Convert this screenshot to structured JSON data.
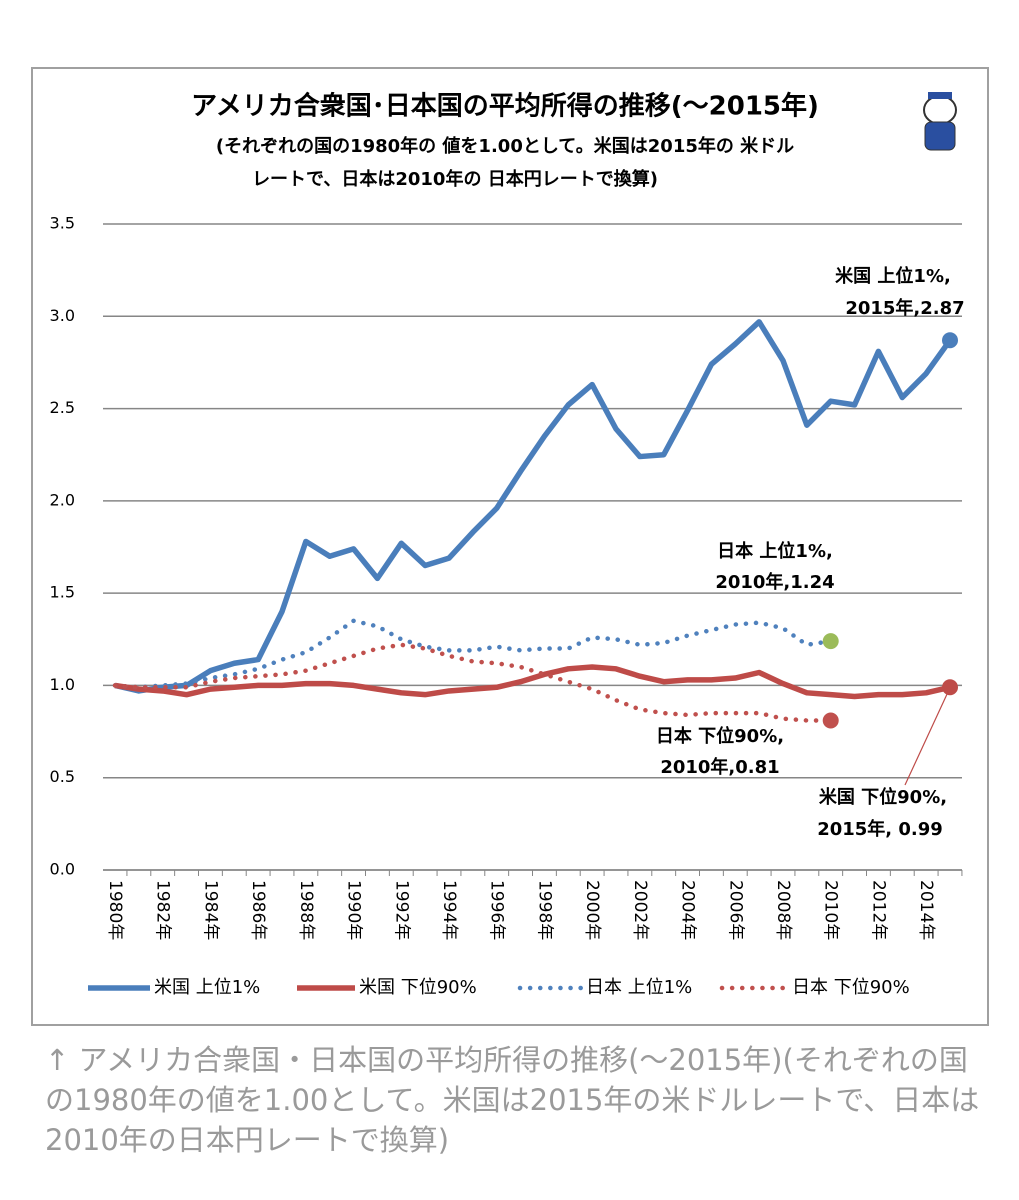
{
  "chart_data": {
    "type": "line",
    "title": "アメリカ合衆国･日本国の平均所得の推移(～2015年)",
    "subtitle": [
      "(それぞれの国の1980年の 値を1.00として。米国は2015年の 米ドル",
      "レートで、日本は2010年の 日本円レートで換算)"
    ],
    "categories": [
      "1980年",
      null,
      "1982年",
      null,
      "1984年",
      null,
      "1986年",
      null,
      "1988年",
      null,
      "1990年",
      null,
      "1992年",
      null,
      "1994年",
      null,
      "1996年",
      null,
      "1998年",
      null,
      "2000年",
      null,
      "2002年",
      null,
      "2004年",
      null,
      "2006年",
      null,
      "2008年",
      null,
      "2010年",
      null,
      "2012年",
      null,
      "2014年",
      null
    ],
    "series": [
      {
        "name": "米国 上位1%",
        "color": "#4a7ebb",
        "style": "solid",
        "marker_color": "#4a7ebb",
        "values": [
          1.0,
          0.97,
          0.99,
          1.0,
          1.08,
          1.12,
          1.14,
          1.4,
          1.78,
          1.7,
          1.74,
          1.58,
          1.77,
          1.65,
          1.69,
          1.83,
          1.96,
          2.16,
          2.35,
          2.52,
          2.63,
          2.39,
          2.24,
          2.25,
          2.49,
          2.74,
          2.85,
          2.97,
          2.76,
          2.41,
          2.54,
          2.52,
          2.81,
          2.56,
          2.69,
          2.87
        ]
      },
      {
        "name": "米国 下位90%",
        "color": "#be4b48",
        "style": "solid",
        "marker_color": "#be4b48",
        "values": [
          1.0,
          0.98,
          0.97,
          0.95,
          0.98,
          0.99,
          1.0,
          1.0,
          1.01,
          1.01,
          1.0,
          0.98,
          0.96,
          0.95,
          0.97,
          0.98,
          0.99,
          1.02,
          1.06,
          1.09,
          1.1,
          1.09,
          1.05,
          1.02,
          1.03,
          1.03,
          1.04,
          1.07,
          1.01,
          0.96,
          0.95,
          0.94,
          0.95,
          0.95,
          0.96,
          0.99
        ]
      },
      {
        "name": "日本 上位1%",
        "color": "#4f81bd",
        "style": "dotted",
        "marker_color": "#9bbb59",
        "values": [
          1.0,
          0.99,
          1.0,
          1.01,
          1.04,
          1.06,
          1.09,
          1.14,
          1.18,
          1.26,
          1.35,
          1.32,
          1.25,
          1.21,
          1.19,
          1.19,
          1.21,
          1.19,
          1.2,
          1.2,
          1.26,
          1.25,
          1.22,
          1.23,
          1.27,
          1.3,
          1.33,
          1.34,
          1.31,
          1.22,
          1.24,
          null,
          null,
          null,
          null,
          null
        ]
      },
      {
        "name": "日本 下位90%",
        "color": "#c0504d",
        "style": "dotted",
        "marker_color": "#c0504d",
        "values": [
          1.0,
          0.99,
          0.99,
          0.99,
          1.02,
          1.04,
          1.05,
          1.06,
          1.08,
          1.12,
          1.16,
          1.2,
          1.22,
          1.2,
          1.16,
          1.13,
          1.12,
          1.1,
          1.06,
          1.02,
          0.98,
          0.92,
          0.87,
          0.85,
          0.84,
          0.85,
          0.85,
          0.85,
          0.82,
          0.81,
          0.81,
          null,
          null,
          null,
          null,
          null
        ]
      }
    ],
    "annotations": [
      {
        "series": 0,
        "lines": [
          "米国 上位1%,",
          "2015年,2.87"
        ]
      },
      {
        "series": 2,
        "lines": [
          "日本 上位1%,",
          "2010年,1.24"
        ]
      },
      {
        "series": 3,
        "lines": [
          "日本 下位90%,",
          "2010年,0.81"
        ]
      },
      {
        "series": 1,
        "lines": [
          "米国 下位90%,",
          "2015年, 0.99"
        ]
      }
    ],
    "ylim": [
      0,
      3.5
    ],
    "yticks": [
      {
        "value": 0,
        "label": "0.0"
      },
      0.5,
      {
        "value": 1,
        "label": "1.0"
      },
      1.5,
      {
        "value": 2,
        "label": "2.0"
      },
      2.5,
      {
        "value": 3,
        "label": "3.0"
      },
      3.5
    ],
    "grid": true,
    "legend": "bottom"
  },
  "caption": "↑ アメリカ合衆国・日本国の平均所得の推移(～2015年)(それぞれの国の1980年の値を1.00として。米国は2015年の米ドルレートで、日本は2010年の日本円レートで換算)"
}
